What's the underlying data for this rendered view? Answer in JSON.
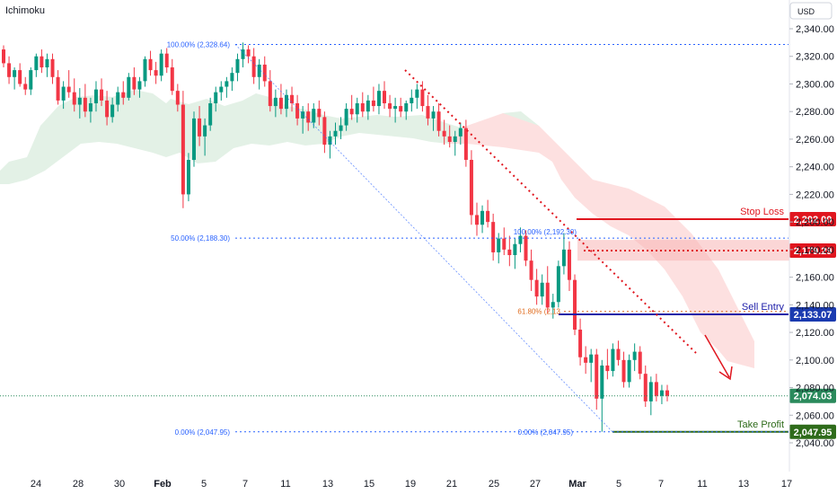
{
  "header": {
    "indicator": "Ichimoku",
    "currency": "USD"
  },
  "colors": {
    "up": "#089981",
    "down": "#f23645",
    "cloud_green": "#e3f1e6",
    "cloud_red": "#fde0e0",
    "stop": "#e0161f",
    "entry_line": "#1c1ca8",
    "entry_badge": "#1b3bb0",
    "tp": "#2e6b1a",
    "current": "#2a8a5c",
    "fib": "#2962ff",
    "fib618": "#e06a1b",
    "trend": "#e0161f"
  },
  "chart_data": {
    "type": "candlestick",
    "y_ticks": [
      "2,040.00",
      "2,060.00",
      "2,080.00",
      "2,100.00",
      "2,120.00",
      "2,140.00",
      "2,160.00",
      "2,180.00",
      "2,200.00",
      "2,220.00",
      "2,240.00",
      "2,260.00",
      "2,280.00",
      "2,300.00",
      "2,320.00",
      "2,340.00"
    ],
    "y_tick_values": [
      2040,
      2060,
      2080,
      2100,
      2120,
      2140,
      2160,
      2180,
      2200,
      2220,
      2240,
      2260,
      2280,
      2300,
      2320,
      2340
    ],
    "ylim": [
      2032,
      2352
    ],
    "x_labels": [
      "24",
      "28",
      "30",
      "Feb",
      "5",
      "7",
      "11",
      "13",
      "15",
      "19",
      "21",
      "25",
      "27",
      "Mar",
      "5",
      "7",
      "11",
      "13",
      "17"
    ],
    "x_bold": [
      "Feb",
      "Mar"
    ],
    "fib_levels": [
      {
        "label": "100.00% (2,328.64)",
        "value": 2328.64
      },
      {
        "label": "50.00% (2,188.30)",
        "value": 2188.3
      },
      {
        "label": "0.00% (2,047.95)",
        "value": 2047.95
      }
    ],
    "fib_short_levels": [
      {
        "label": "100.00% (2,192.30)",
        "value": 2192.3
      },
      {
        "label": "61.80% (2,13",
        "value": 2135.2
      },
      {
        "label": "0.00% (2,047.95)",
        "value": 2047.95
      }
    ],
    "levels": {
      "stop_loss": {
        "label": "Stop Loss",
        "value": 2202.0,
        "badge": "2,202.00"
      },
      "resistance": {
        "value": 2179.29,
        "badge": "2,179.29"
      },
      "sell_entry": {
        "label": "Sell Entry",
        "value": 2133.07,
        "badge": "2,133.07"
      },
      "current": {
        "value": 2074.03,
        "badge": "2,074.03"
      },
      "take_profit": {
        "label": "Take Profit",
        "value": 2047.95,
        "badge": "2,047.95"
      }
    },
    "candles": [
      [
        2325,
        2328,
        2312,
        2315
      ],
      [
        2315,
        2320,
        2300,
        2305
      ],
      [
        2305,
        2312,
        2296,
        2310
      ],
      [
        2310,
        2315,
        2298,
        2300
      ],
      [
        2300,
        2305,
        2292,
        2296
      ],
      [
        2296,
        2312,
        2292,
        2310
      ],
      [
        2310,
        2322,
        2305,
        2320
      ],
      [
        2320,
        2325,
        2308,
        2312
      ],
      [
        2312,
        2322,
        2305,
        2318
      ],
      [
        2318,
        2322,
        2300,
        2305
      ],
      [
        2305,
        2310,
        2285,
        2288
      ],
      [
        2288,
        2302,
        2282,
        2298
      ],
      [
        2298,
        2310,
        2290,
        2294
      ],
      [
        2294,
        2304,
        2280,
        2285
      ],
      [
        2285,
        2297,
        2275,
        2290
      ],
      [
        2290,
        2300,
        2276,
        2280
      ],
      [
        2280,
        2290,
        2272,
        2286
      ],
      [
        2286,
        2302,
        2280,
        2296
      ],
      [
        2296,
        2304,
        2284,
        2288
      ],
      [
        2288,
        2295,
        2270,
        2276
      ],
      [
        2276,
        2290,
        2272,
        2285
      ],
      [
        2285,
        2298,
        2280,
        2294
      ],
      [
        2294,
        2302,
        2285,
        2290
      ],
      [
        2290,
        2308,
        2288,
        2305
      ],
      [
        2305,
        2312,
        2292,
        2296
      ],
      [
        2296,
        2305,
        2290,
        2302
      ],
      [
        2302,
        2320,
        2298,
        2318
      ],
      [
        2318,
        2324,
        2306,
        2310
      ],
      [
        2310,
        2316,
        2300,
        2306
      ],
      [
        2306,
        2325,
        2302,
        2322
      ],
      [
        2322,
        2326,
        2308,
        2312
      ],
      [
        2312,
        2318,
        2292,
        2295
      ],
      [
        2295,
        2300,
        2280,
        2285
      ],
      [
        2285,
        2295,
        2210,
        2220
      ],
      [
        2220,
        2250,
        2215,
        2245
      ],
      [
        2245,
        2280,
        2240,
        2275
      ],
      [
        2275,
        2284,
        2255,
        2262
      ],
      [
        2262,
        2275,
        2248,
        2270
      ],
      [
        2270,
        2290,
        2266,
        2286
      ],
      [
        2286,
        2298,
        2280,
        2294
      ],
      [
        2294,
        2302,
        2288,
        2298
      ],
      [
        2298,
        2305,
        2290,
        2302
      ],
      [
        2302,
        2312,
        2295,
        2308
      ],
      [
        2308,
        2322,
        2302,
        2318
      ],
      [
        2318,
        2330,
        2312,
        2325
      ],
      [
        2325,
        2328,
        2315,
        2320
      ],
      [
        2320,
        2326,
        2300,
        2305
      ],
      [
        2305,
        2318,
        2296,
        2314
      ],
      [
        2314,
        2320,
        2298,
        2302
      ],
      [
        2302,
        2310,
        2280,
        2284
      ],
      [
        2284,
        2296,
        2276,
        2290
      ],
      [
        2290,
        2300,
        2278,
        2282
      ],
      [
        2282,
        2296,
        2276,
        2292
      ],
      [
        2292,
        2298,
        2280,
        2286
      ],
      [
        2286,
        2292,
        2270,
        2275
      ],
      [
        2275,
        2284,
        2264,
        2280
      ],
      [
        2280,
        2286,
        2266,
        2272
      ],
      [
        2272,
        2286,
        2268,
        2282
      ],
      [
        2282,
        2288,
        2270,
        2276
      ],
      [
        2276,
        2280,
        2250,
        2256
      ],
      [
        2256,
        2266,
        2246,
        2262
      ],
      [
        2262,
        2272,
        2256,
        2266
      ],
      [
        2266,
        2276,
        2260,
        2270
      ],
      [
        2270,
        2286,
        2266,
        2282
      ],
      [
        2282,
        2292,
        2274,
        2278
      ],
      [
        2278,
        2290,
        2272,
        2286
      ],
      [
        2286,
        2294,
        2276,
        2280
      ],
      [
        2280,
        2292,
        2274,
        2288
      ],
      [
        2288,
        2298,
        2280,
        2284
      ],
      [
        2284,
        2300,
        2278,
        2295
      ],
      [
        2295,
        2302,
        2282,
        2286
      ],
      [
        2286,
        2292,
        2276,
        2282
      ],
      [
        2282,
        2290,
        2272,
        2284
      ],
      [
        2284,
        2290,
        2276,
        2280
      ],
      [
        2280,
        2288,
        2274,
        2286
      ],
      [
        2286,
        2296,
        2280,
        2290
      ],
      [
        2290,
        2300,
        2282,
        2296
      ],
      [
        2296,
        2302,
        2280,
        2284
      ],
      [
        2284,
        2292,
        2270,
        2275
      ],
      [
        2275,
        2284,
        2266,
        2280
      ],
      [
        2280,
        2286,
        2262,
        2266
      ],
      [
        2266,
        2274,
        2256,
        2262
      ],
      [
        2262,
        2270,
        2254,
        2258
      ],
      [
        2258,
        2266,
        2248,
        2262
      ],
      [
        2262,
        2272,
        2256,
        2268
      ],
      [
        2268,
        2274,
        2240,
        2245
      ],
      [
        2245,
        2252,
        2198,
        2205
      ],
      [
        2205,
        2214,
        2190,
        2198
      ],
      [
        2198,
        2212,
        2192,
        2208
      ],
      [
        2208,
        2216,
        2196,
        2200
      ],
      [
        2200,
        2206,
        2172,
        2178
      ],
      [
        2178,
        2192,
        2170,
        2188
      ],
      [
        2188,
        2196,
        2176,
        2180
      ],
      [
        2180,
        2190,
        2168,
        2176
      ],
      [
        2176,
        2188,
        2166,
        2184
      ],
      [
        2184,
        2196,
        2178,
        2190
      ],
      [
        2190,
        2194,
        2168,
        2172
      ],
      [
        2172,
        2180,
        2150,
        2158
      ],
      [
        2158,
        2166,
        2140,
        2146
      ],
      [
        2146,
        2162,
        2140,
        2156
      ],
      [
        2156,
        2168,
        2134,
        2138
      ],
      [
        2138,
        2148,
        2130,
        2142
      ],
      [
        2142,
        2172,
        2138,
        2168
      ],
      [
        2168,
        2192,
        2162,
        2180
      ],
      [
        2180,
        2186,
        2150,
        2158
      ],
      [
        2158,
        2162,
        2118,
        2122
      ],
      [
        2122,
        2130,
        2096,
        2102
      ],
      [
        2102,
        2110,
        2090,
        2098
      ],
      [
        2098,
        2108,
        2084,
        2104
      ],
      [
        2104,
        2108,
        2064,
        2072
      ],
      [
        2072,
        2100,
        2048,
        2096
      ],
      [
        2096,
        2108,
        2086,
        2092
      ],
      [
        2092,
        2112,
        2088,
        2108
      ],
      [
        2108,
        2114,
        2096,
        2100
      ],
      [
        2100,
        2106,
        2080,
        2084
      ],
      [
        2084,
        2104,
        2080,
        2100
      ],
      [
        2100,
        2112,
        2092,
        2106
      ],
      [
        2106,
        2110,
        2086,
        2090
      ],
      [
        2090,
        2096,
        2066,
        2070
      ],
      [
        2070,
        2088,
        2060,
        2084
      ],
      [
        2084,
        2090,
        2070,
        2074
      ],
      [
        2074,
        2082,
        2068,
        2078
      ],
      [
        2078,
        2082,
        2070,
        2074
      ]
    ]
  }
}
